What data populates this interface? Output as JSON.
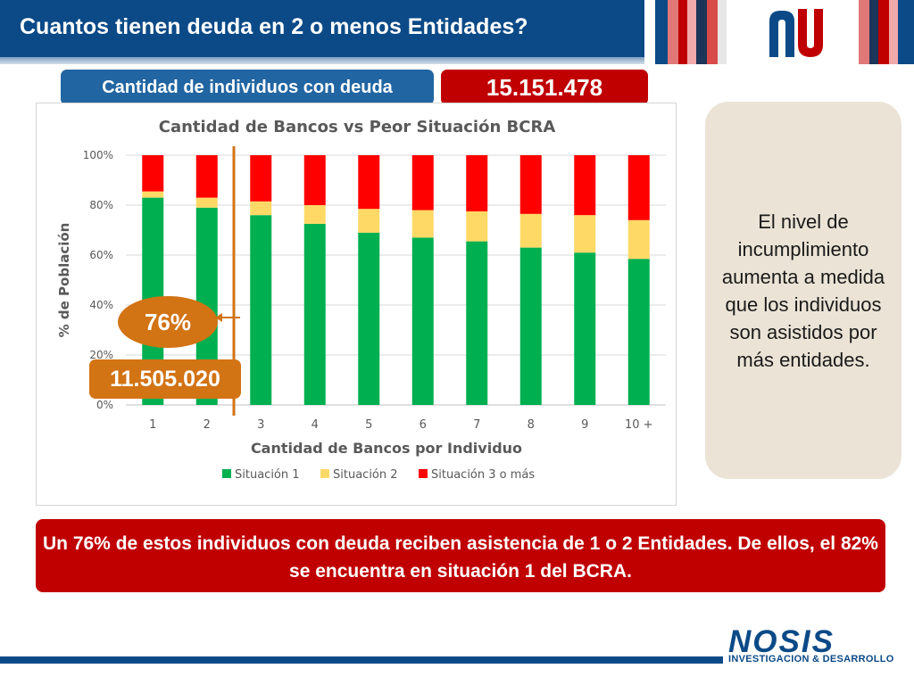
{
  "header": {
    "title": "Cuantos tienen deuda en 2 o menos Entidades?",
    "colors": {
      "primary": "#0b4a87",
      "accent": "#c00000",
      "highlight": "#d27314"
    }
  },
  "pills": {
    "subtitle": "Cantidad de individuos con deuda",
    "total": "15.151.478"
  },
  "chart_data": {
    "type": "bar",
    "stacked": true,
    "title": "Cantidad de Bancos vs Peor Situación BCRA",
    "xlabel": "Cantidad de Bancos por Individuo",
    "ylabel": "% de Población",
    "ylim": [
      0,
      100
    ],
    "y_ticks": [
      "0%",
      "20%",
      "40%",
      "60%",
      "80%",
      "100%"
    ],
    "grid": true,
    "legend_position": "bottom",
    "categories": [
      "1",
      "2",
      "3",
      "4",
      "5",
      "6",
      "7",
      "8",
      "9",
      "10 +"
    ],
    "series": [
      {
        "name": "Situación 1",
        "color": "#00b050",
        "values": [
          83,
          79,
          76,
          72.5,
          69,
          67,
          65.5,
          63,
          61,
          58.5
        ]
      },
      {
        "name": "Situación 2",
        "color": "#ffd966",
        "values": [
          2.5,
          4,
          5.5,
          7.5,
          9.5,
          11,
          12,
          13.5,
          15,
          15.5
        ]
      },
      {
        "name": "Situación 3 o más",
        "color": "#ff0000",
        "values": [
          14.5,
          17,
          18.5,
          20,
          21.5,
          22,
          22.5,
          23.5,
          24,
          26
        ]
      }
    ],
    "separator_after_index": 1,
    "separator_color": "#d27314"
  },
  "annotations": {
    "percentage": "76%",
    "count": "11.505.020"
  },
  "side_note": {
    "text": "El nivel de incumplimiento aumenta a medida que los individuos son asistidos por más entidades."
  },
  "conclusion": {
    "text": "Un 76% de estos individuos con deuda reciben asistencia de 1 o 2 Entidades. De ellos, el 82% se encuentra en situación 1 del BCRA."
  },
  "footer": {
    "logo_text": "NOSIS",
    "tagline": "INVESTIGACION & DESARROLLO"
  }
}
